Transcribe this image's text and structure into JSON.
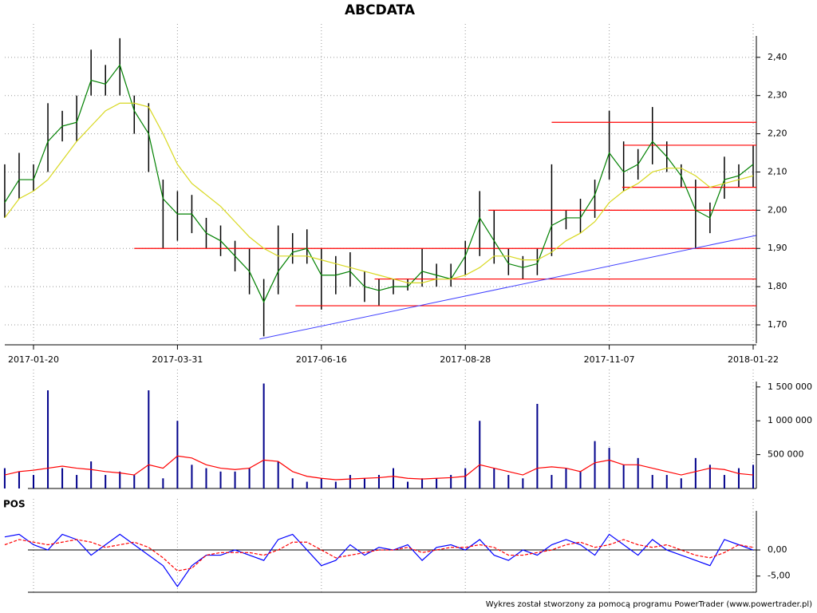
{
  "chart_data": [
    {
      "type": "ohlc",
      "title": "ABCDATA",
      "categories": [
        null,
        null,
        "2017-01-20",
        null,
        null,
        null,
        null,
        null,
        null,
        null,
        null,
        null,
        "2017-03-31",
        null,
        null,
        null,
        null,
        null,
        null,
        null,
        null,
        null,
        "2017-06-16",
        null,
        null,
        null,
        null,
        null,
        null,
        null,
        null,
        null,
        "2017-08-28",
        null,
        null,
        null,
        null,
        null,
        null,
        null,
        null,
        null,
        "2017-11-07",
        null,
        null,
        null,
        null,
        null,
        null,
        null,
        null,
        null,
        "2018-01-22"
      ],
      "bar_color": "#000000",
      "high": [
        2.12,
        2.15,
        2.12,
        2.28,
        2.26,
        2.3,
        2.42,
        2.38,
        2.45,
        2.3,
        2.28,
        2.08,
        2.05,
        2.04,
        1.98,
        1.96,
        1.92,
        1.9,
        1.82,
        1.96,
        1.94,
        1.95,
        1.9,
        1.88,
        1.89,
        1.84,
        1.82,
        1.82,
        1.82,
        1.9,
        1.86,
        1.86,
        1.92,
        2.05,
        2.0,
        1.9,
        1.88,
        1.9,
        2.12,
        2.0,
        2.03,
        2.08,
        2.26,
        2.18,
        2.16,
        2.27,
        2.18,
        2.12,
        2.08,
        2.02,
        2.14,
        2.12,
        2.17
      ],
      "low": [
        1.98,
        2.03,
        2.05,
        2.1,
        2.18,
        2.18,
        2.3,
        2.3,
        2.3,
        2.2,
        2.1,
        1.9,
        1.92,
        1.94,
        1.9,
        1.88,
        1.84,
        1.78,
        1.67,
        1.78,
        1.86,
        1.86,
        1.74,
        1.78,
        1.8,
        1.76,
        1.75,
        1.78,
        1.79,
        1.8,
        1.8,
        1.8,
        1.83,
        1.88,
        1.86,
        1.83,
        1.82,
        1.83,
        1.88,
        1.95,
        1.94,
        1.98,
        2.08,
        2.05,
        2.08,
        2.12,
        2.1,
        2.06,
        1.9,
        1.94,
        2.03,
        2.06,
        2.06
      ],
      "series": [
        {
          "color": "#008000",
          "values": [
            2.02,
            2.08,
            2.08,
            2.18,
            2.22,
            2.23,
            2.34,
            2.33,
            2.38,
            2.26,
            2.2,
            2.03,
            1.99,
            1.99,
            1.94,
            1.92,
            1.88,
            1.84,
            1.76,
            1.84,
            1.89,
            1.9,
            1.83,
            1.83,
            1.84,
            1.8,
            1.79,
            1.8,
            1.8,
            1.84,
            1.83,
            1.82,
            1.88,
            1.98,
            1.92,
            1.86,
            1.85,
            1.86,
            1.96,
            1.98,
            1.98,
            2.04,
            2.15,
            2.1,
            2.12,
            2.18,
            2.14,
            2.09,
            2.0,
            1.98,
            2.08,
            2.09,
            2.12
          ]
        },
        {
          "color": "#d8d820",
          "values": [
            1.98,
            2.03,
            2.05,
            2.08,
            2.13,
            2.18,
            2.22,
            2.26,
            2.28,
            2.28,
            2.27,
            2.2,
            2.12,
            2.07,
            2.04,
            2.01,
            1.97,
            1.93,
            1.9,
            1.88,
            1.88,
            1.88,
            1.87,
            1.86,
            1.85,
            1.84,
            1.83,
            1.82,
            1.81,
            1.81,
            1.82,
            1.82,
            1.83,
            1.85,
            1.88,
            1.88,
            1.87,
            1.87,
            1.89,
            1.92,
            1.94,
            1.97,
            2.02,
            2.05,
            2.07,
            2.1,
            2.11,
            2.11,
            2.09,
            2.06,
            2.07,
            2.08,
            2.09
          ]
        }
      ],
      "levels": {
        "color": "#ff0000",
        "lines": [
          {
            "value": 2.23,
            "start": 38
          },
          {
            "value": 2.17,
            "start": 43
          },
          {
            "value": 2.06,
            "start": 42.9
          },
          {
            "value": 2.0,
            "start": 33.6
          },
          {
            "value": 1.9,
            "start": 9
          },
          {
            "value": 1.82,
            "start": 25.7
          },
          {
            "value": 1.75,
            "start": 20.2
          }
        ]
      },
      "trend": {
        "color": "#4040ff",
        "x": [
          17.7,
          52.2
        ],
        "y": [
          1.663,
          1.934
        ]
      },
      "ylim": [
        1.652,
        2.456
      ],
      "yticks": [
        {
          "value": 1.7,
          "label": "1,70"
        },
        {
          "value": 1.8,
          "label": "1,80"
        },
        {
          "value": 1.9,
          "label": "1,90"
        },
        {
          "value": 2.0,
          "label": "2,00"
        },
        {
          "value": 2.1,
          "label": "2,10"
        },
        {
          "value": 2.2,
          "label": "2,20"
        },
        {
          "value": 2.3,
          "label": "2,30"
        },
        {
          "value": 2.4,
          "label": "2,40"
        }
      ],
      "grid": true
    },
    {
      "type": "bar",
      "series": [
        {
          "type": "bar",
          "color": "#00008b",
          "values": [
            300000,
            250000,
            200000,
            1450000,
            300000,
            200000,
            400000,
            200000,
            250000,
            200000,
            1450000,
            150000,
            1000000,
            350000,
            300000,
            250000,
            250000,
            300000,
            1550000,
            400000,
            150000,
            100000,
            150000,
            100000,
            200000,
            150000,
            200000,
            300000,
            100000,
            150000,
            150000,
            200000,
            300000,
            1000000,
            300000,
            200000,
            150000,
            1250000,
            200000,
            300000,
            250000,
            700000,
            600000,
            350000,
            450000,
            200000,
            200000,
            150000,
            450000,
            350000,
            200000,
            300000,
            350000
          ]
        },
        {
          "type": "line",
          "color": "#ff0000",
          "values": [
            200000,
            250000,
            270000,
            300000,
            330000,
            300000,
            280000,
            250000,
            230000,
            200000,
            350000,
            300000,
            480000,
            450000,
            350000,
            300000,
            280000,
            300000,
            420000,
            400000,
            250000,
            180000,
            150000,
            130000,
            140000,
            150000,
            160000,
            180000,
            150000,
            140000,
            150000,
            160000,
            180000,
            350000,
            300000,
            250000,
            200000,
            300000,
            320000,
            300000,
            250000,
            380000,
            420000,
            350000,
            350000,
            300000,
            250000,
            200000,
            250000,
            300000,
            280000,
            220000,
            200000
          ]
        }
      ],
      "ylim": [
        0,
        1580000
      ],
      "yticks": [
        {
          "value": 500000,
          "label": "500 000"
        },
        {
          "value": 1000000,
          "label": "1 000 000"
        },
        {
          "value": 1500000,
          "label": "1 500 000"
        }
      ]
    },
    {
      "type": "line",
      "title": "POS",
      "series": [
        {
          "color": "#0000ff",
          "dashed": false,
          "values": [
            2.5,
            3,
            1,
            0,
            3,
            2,
            -1,
            1,
            3,
            1,
            -1,
            -3,
            -7,
            -3,
            -1,
            -1,
            0,
            -1,
            -2,
            2,
            3,
            0,
            -3,
            -2,
            1,
            -1,
            0.5,
            0,
            1,
            -2,
            0.5,
            1,
            0,
            2,
            -1,
            -2,
            0,
            -1,
            1,
            2,
            1,
            -1,
            3,
            1,
            -1,
            2,
            0,
            -1,
            -2,
            -3,
            2,
            1,
            0
          ]
        },
        {
          "color": "#ff0000",
          "dashed": true,
          "values": [
            1,
            2,
            1.5,
            1,
            1.5,
            2,
            1.5,
            0.5,
            1,
            1.5,
            0.5,
            -1.5,
            -4,
            -3.5,
            -1,
            -0.5,
            -0.5,
            -0.5,
            -1,
            0,
            1.5,
            1.5,
            0,
            -1.5,
            -1,
            -0.5,
            0,
            0,
            0.5,
            -0.5,
            0,
            0.5,
            0.5,
            1,
            0.5,
            -1,
            -1,
            -0.5,
            0,
            1,
            1.5,
            0.5,
            1,
            2,
            1,
            0.5,
            1,
            0,
            -1,
            -1.5,
            -0.5,
            1,
            0.5
          ]
        }
      ],
      "baseline": 0,
      "ylim": [
        -8.1,
        7.5
      ],
      "yticks": [
        {
          "value": -5,
          "label": "-5,00"
        },
        {
          "value": 0,
          "label": "0,00"
        }
      ]
    }
  ],
  "footer": "Wykres został stworzony za pomocą programu PowerTrader (www.powertrader.pl)"
}
